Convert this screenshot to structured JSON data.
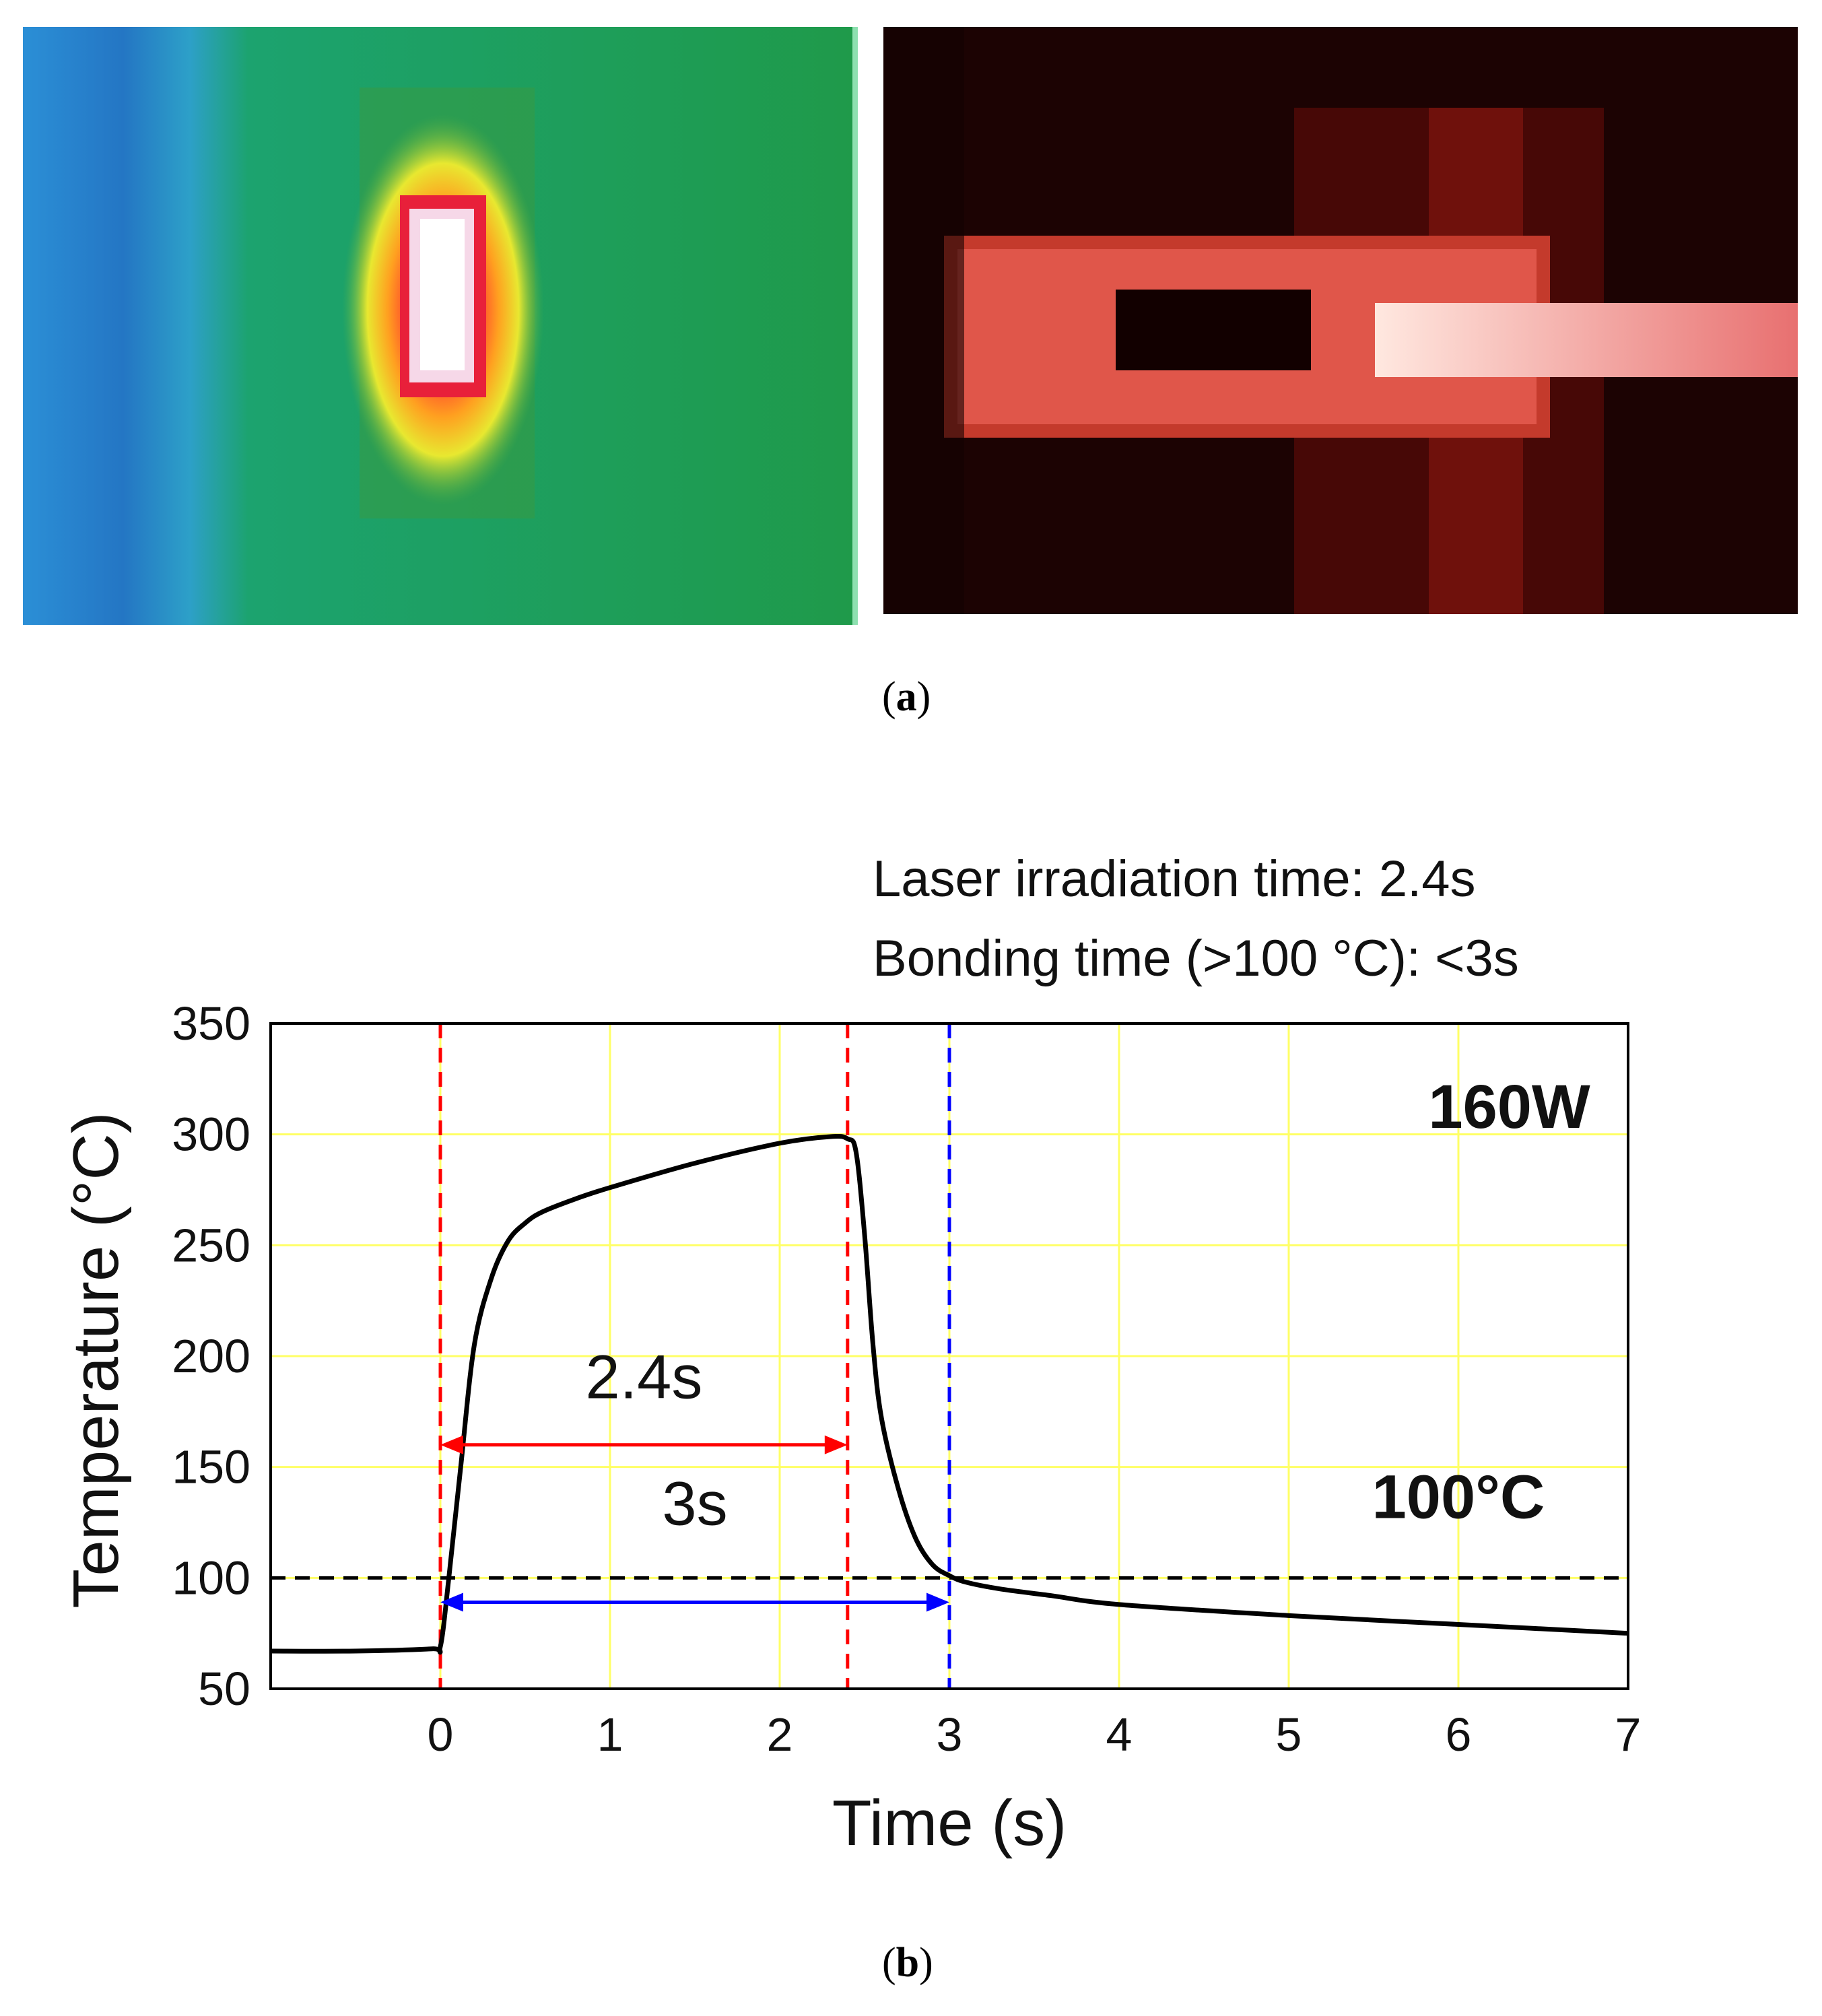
{
  "panels": {
    "a_label": "a",
    "b_label": "b"
  },
  "images": {
    "thermal": {
      "description_icon": "thermal-camera-image"
    },
    "camera": {
      "description_icon": "laser-camera-image"
    }
  },
  "notes": {
    "line1": "Laser irradiation time: 2.4s",
    "line2": "Bonding time (>100 °C): <3s"
  },
  "chart_data": {
    "type": "line",
    "xlabel": "Time (s)",
    "ylabel": "Temperature (°C)",
    "xlim": [
      -1,
      7
    ],
    "ylim": [
      50,
      350
    ],
    "xticks": [
      0,
      1,
      2,
      3,
      4,
      5,
      6,
      7
    ],
    "yticks": [
      50,
      100,
      150,
      200,
      250,
      300,
      350
    ],
    "grid": true,
    "grid_color": "#ffff66",
    "series": [
      {
        "color": "#000000",
        "x": [
          -1,
          -0.5,
          -0.05,
          0,
          0.05,
          0.12,
          0.2,
          0.3,
          0.4,
          0.5,
          0.6,
          0.8,
          1.0,
          1.5,
          2.0,
          2.3,
          2.4,
          2.45,
          2.5,
          2.55,
          2.6,
          2.7,
          2.8,
          2.9,
          3.0,
          3.1,
          3.3,
          3.6,
          4.0,
          5.0,
          6.0,
          7.0
        ],
        "y": [
          67,
          67,
          68,
          69,
          100,
          150,
          205,
          235,
          252,
          260,
          265,
          271,
          276,
          287,
          296,
          299,
          298,
          292,
          255,
          205,
          172,
          140,
          118,
          106,
          101,
          98,
          95,
          92,
          88,
          83,
          79,
          75
        ]
      }
    ],
    "reference_lines": [
      {
        "orientation": "vertical",
        "x": 0,
        "color": "#ff0000",
        "style": "dashed"
      },
      {
        "orientation": "vertical",
        "x": 2.4,
        "color": "#ff0000",
        "style": "dashed"
      },
      {
        "orientation": "vertical",
        "x": 3,
        "color": "#0000ff",
        "style": "dashed"
      },
      {
        "orientation": "horizontal",
        "y": 100,
        "color": "#000000",
        "style": "dashed"
      }
    ],
    "spans": [
      {
        "label": "2.4s",
        "x_start": 0,
        "x_end": 2.4,
        "y": 160,
        "color": "#ff0000",
        "label_y": 181
      },
      {
        "label": "3s",
        "x_start": 0,
        "x_end": 3,
        "y": 89,
        "color": "#0000ff",
        "label_y": 124
      }
    ],
    "annotations": [
      {
        "text": "160W",
        "x": 6.3,
        "y": 303
      },
      {
        "text": "100°C",
        "x": 6.0,
        "y": 127
      }
    ]
  }
}
